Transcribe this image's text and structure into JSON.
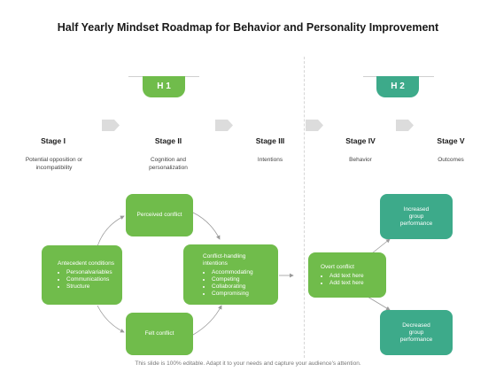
{
  "title": "Half Yearly Mindset Roadmap for Behavior and Personality Improvement",
  "colors": {
    "green": "#70bc4b",
    "teal": "#3daa8a",
    "chevron": "#dcdcdc"
  },
  "halves": [
    {
      "label": "H 1",
      "color": "#70bc4b"
    },
    {
      "label": "H 2",
      "color": "#3daa8a"
    }
  ],
  "stages": [
    {
      "name": "Stage I",
      "desc": "Potential opposition or incompatibility"
    },
    {
      "name": "Stage II",
      "desc": "Cognition and personalization"
    },
    {
      "name": "Stage III",
      "desc": "Intentions"
    },
    {
      "name": "Stage IV",
      "desc": "Behavior"
    },
    {
      "name": "Stage V",
      "desc": "Outcomes"
    }
  ],
  "boxes": {
    "perceived": "Perceived conflict",
    "antecedent": {
      "title": "Antecedent conditions",
      "items": [
        "Personalvariables",
        "Communications",
        "Structure"
      ]
    },
    "felt": "Felt conflict",
    "intentions": {
      "title": "Conflict-handling intentions",
      "items": [
        "Accommodating",
        "Competing",
        "Collaborating",
        "Compromising"
      ]
    },
    "overt": {
      "title": "Overt conflict",
      "items": [
        "Add text here",
        "Add text here"
      ]
    },
    "increased": "Increased group performance",
    "decreased": "Decreased group performance"
  },
  "footer": "This slide is 100% editable. Adapt it to your needs and capture your audience's attention."
}
